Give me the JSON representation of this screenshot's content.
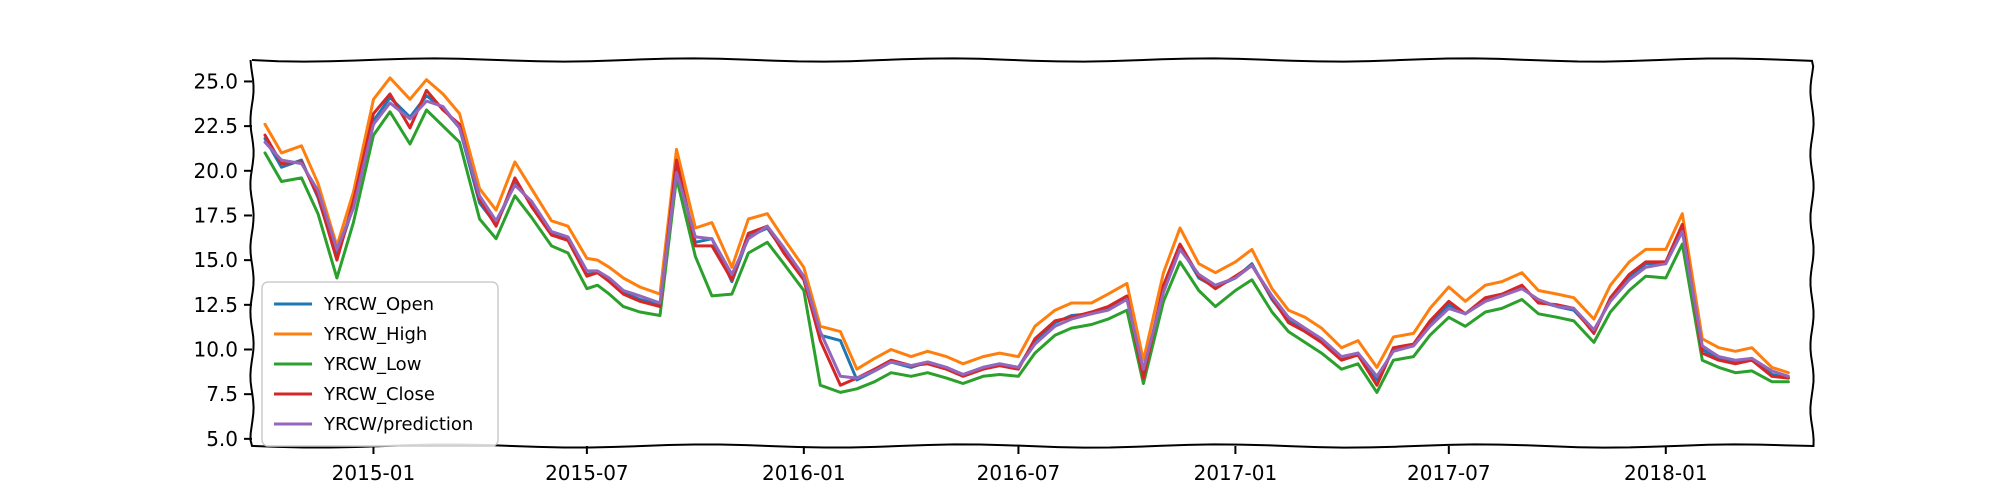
{
  "chart_data": {
    "type": "line",
    "title": "",
    "xlabel": "",
    "ylabel": "",
    "xlim": [
      "2014-09-20",
      "2018-05-05"
    ],
    "ylim": [
      4.6,
      26.2
    ],
    "grid": false,
    "legend_position": "lower-left",
    "x_ticks": [
      "2015-01",
      "2015-07",
      "2016-01",
      "2016-07",
      "2017-01",
      "2017-07",
      "2018-01"
    ],
    "y_ticks": [
      "5.0",
      "7.5",
      "10.0",
      "12.5",
      "15.0",
      "17.5",
      "20.0",
      "22.5",
      "25.0"
    ],
    "x": [
      "2014-10-01",
      "2014-10-15",
      "2014-11-01",
      "2014-11-15",
      "2014-12-01",
      "2014-12-15",
      "2015-01-01",
      "2015-01-15",
      "2015-02-01",
      "2015-02-15",
      "2015-03-01",
      "2015-03-15",
      "2015-04-01",
      "2015-04-15",
      "2015-05-01",
      "2015-05-15",
      "2015-06-01",
      "2015-06-15",
      "2015-07-01",
      "2015-07-10",
      "2015-07-20",
      "2015-08-01",
      "2015-08-15",
      "2015-09-01",
      "2015-09-15",
      "2015-10-01",
      "2015-10-15",
      "2015-11-01",
      "2015-11-15",
      "2015-12-01",
      "2015-12-15",
      "2016-01-01",
      "2016-01-15",
      "2016-02-01",
      "2016-02-15",
      "2016-03-01",
      "2016-03-15",
      "2016-04-01",
      "2016-04-15",
      "2016-05-01",
      "2016-05-15",
      "2016-06-01",
      "2016-06-15",
      "2016-07-01",
      "2016-07-15",
      "2016-08-01",
      "2016-08-15",
      "2016-09-01",
      "2016-09-15",
      "2016-10-01",
      "2016-10-15",
      "2016-11-01",
      "2016-11-15",
      "2016-12-01",
      "2016-12-15",
      "2017-01-01",
      "2017-01-15",
      "2017-02-01",
      "2017-02-15",
      "2017-03-01",
      "2017-03-15",
      "2017-04-01",
      "2017-04-15",
      "2017-05-01",
      "2017-05-15",
      "2017-06-01",
      "2017-06-15",
      "2017-07-01",
      "2017-07-15",
      "2017-08-01",
      "2017-08-15",
      "2017-09-01",
      "2017-09-15",
      "2017-10-01",
      "2017-10-15",
      "2017-11-01",
      "2017-11-15",
      "2017-12-01",
      "2017-12-15",
      "2018-01-01",
      "2018-01-15",
      "2018-02-01",
      "2018-02-15",
      "2018-03-01",
      "2018-03-15",
      "2018-04-01",
      "2018-04-15"
    ],
    "series": [
      {
        "name": "YRCW_Open",
        "color": "#1f77b4",
        "values": [
          21.8,
          20.2,
          20.6,
          18.5,
          15.2,
          18.0,
          22.8,
          24.1,
          23.0,
          24.2,
          23.5,
          22.4,
          18.2,
          17.0,
          19.3,
          18.2,
          16.5,
          16.2,
          14.2,
          14.3,
          13.9,
          13.2,
          12.8,
          12.5,
          20.5,
          16.0,
          16.2,
          13.8,
          16.3,
          16.8,
          15.5,
          14.0,
          10.8,
          10.5,
          8.3,
          8.8,
          9.3,
          9.0,
          9.3,
          9.0,
          8.6,
          9.0,
          9.2,
          9.0,
          10.5,
          11.5,
          11.9,
          12.0,
          12.3,
          12.9,
          8.7,
          13.4,
          15.8,
          14.0,
          13.5,
          14.0,
          14.8,
          12.8,
          11.6,
          11.1,
          10.5,
          9.5,
          9.8,
          8.3,
          10.0,
          10.2,
          11.5,
          12.5,
          12.0,
          12.8,
          13.0,
          13.5,
          12.7,
          12.4,
          12.2,
          11.0,
          12.8,
          14.0,
          14.8,
          14.8,
          16.8,
          10.0,
          9.5,
          9.3,
          9.5,
          8.6,
          8.4
        ]
      },
      {
        "name": "YRCW_High",
        "color": "#ff7f0e",
        "values": [
          22.6,
          21.0,
          21.4,
          19.3,
          15.8,
          18.8,
          24.0,
          25.2,
          24.0,
          25.1,
          24.3,
          23.2,
          19.0,
          17.8,
          20.5,
          19.0,
          17.2,
          16.9,
          15.1,
          15.0,
          14.6,
          14.0,
          13.5,
          13.1,
          21.2,
          16.8,
          17.1,
          14.6,
          17.3,
          17.6,
          16.2,
          14.6,
          11.3,
          11.0,
          8.9,
          9.5,
          10.0,
          9.6,
          9.9,
          9.6,
          9.2,
          9.6,
          9.8,
          9.6,
          11.3,
          12.2,
          12.6,
          12.6,
          13.1,
          13.7,
          9.4,
          14.3,
          16.8,
          14.8,
          14.3,
          14.9,
          15.6,
          13.4,
          12.2,
          11.8,
          11.2,
          10.1,
          10.5,
          9.0,
          10.7,
          10.9,
          12.3,
          13.5,
          12.7,
          13.6,
          13.8,
          14.3,
          13.3,
          13.1,
          12.9,
          11.7,
          13.6,
          14.9,
          15.6,
          15.6,
          17.6,
          10.6,
          10.1,
          9.9,
          10.1,
          9.0,
          8.7
        ]
      },
      {
        "name": "YRCW_Low",
        "color": "#2ca02c",
        "values": [
          21.0,
          19.4,
          19.6,
          17.6,
          14.0,
          17.1,
          22.0,
          23.3,
          21.5,
          23.4,
          22.5,
          21.6,
          17.3,
          16.2,
          18.6,
          17.4,
          15.8,
          15.4,
          13.4,
          13.6,
          13.1,
          12.4,
          12.1,
          11.9,
          19.6,
          15.2,
          13.0,
          13.1,
          15.4,
          16.0,
          14.8,
          13.3,
          8.0,
          7.6,
          7.8,
          8.2,
          8.7,
          8.5,
          8.7,
          8.4,
          8.1,
          8.5,
          8.6,
          8.5,
          9.8,
          10.8,
          11.2,
          11.4,
          11.7,
          12.2,
          8.1,
          12.7,
          14.9,
          13.3,
          12.4,
          13.3,
          13.9,
          12.1,
          11.0,
          10.4,
          9.8,
          8.9,
          9.2,
          7.6,
          9.4,
          9.6,
          10.8,
          11.8,
          11.3,
          12.1,
          12.3,
          12.8,
          12.0,
          11.8,
          11.6,
          10.4,
          12.1,
          13.3,
          14.1,
          14.0,
          15.9,
          9.4,
          9.0,
          8.7,
          8.8,
          8.2,
          8.2
        ]
      },
      {
        "name": "YRCW_Close",
        "color": "#d62728",
        "values": [
          22.0,
          20.4,
          20.5,
          18.6,
          15.0,
          18.3,
          23.2,
          24.3,
          22.4,
          24.5,
          23.4,
          22.6,
          18.4,
          16.9,
          19.6,
          18.0,
          16.4,
          16.1,
          14.1,
          14.3,
          13.8,
          13.1,
          12.7,
          12.4,
          20.6,
          15.8,
          15.8,
          13.9,
          16.5,
          16.9,
          15.4,
          13.9,
          10.5,
          8.0,
          8.4,
          8.9,
          9.4,
          9.1,
          9.2,
          8.9,
          8.5,
          8.9,
          9.1,
          8.9,
          10.6,
          11.6,
          11.8,
          12.1,
          12.4,
          13.0,
          8.4,
          13.6,
          15.9,
          14.1,
          13.4,
          14.1,
          14.7,
          12.9,
          11.5,
          11.0,
          10.4,
          9.4,
          9.7,
          8.0,
          10.1,
          10.3,
          11.6,
          12.7,
          12.0,
          12.9,
          13.1,
          13.6,
          12.6,
          12.5,
          12.3,
          10.9,
          12.9,
          14.2,
          14.9,
          14.9,
          17.0,
          9.8,
          9.4,
          9.2,
          9.4,
          8.5,
          8.4
        ]
      },
      {
        "name": "YRCW/prediction",
        "color": "#9467bd",
        "values": [
          21.6,
          20.6,
          20.4,
          18.9,
          15.6,
          17.9,
          22.6,
          23.8,
          22.9,
          23.9,
          23.6,
          22.4,
          18.6,
          17.2,
          19.2,
          18.3,
          16.6,
          16.3,
          14.4,
          14.4,
          14.0,
          13.3,
          13.0,
          12.6,
          19.9,
          16.3,
          16.2,
          14.2,
          16.2,
          16.9,
          15.7,
          14.1,
          11.0,
          8.5,
          8.4,
          8.8,
          9.3,
          9.1,
          9.3,
          9.0,
          8.6,
          9.0,
          9.2,
          9.0,
          10.3,
          11.3,
          11.7,
          12.0,
          12.2,
          12.8,
          8.9,
          13.2,
          15.6,
          14.2,
          13.6,
          14.0,
          14.7,
          13.0,
          11.8,
          11.2,
          10.6,
          9.6,
          9.8,
          8.5,
          9.9,
          10.2,
          11.3,
          12.3,
          12.0,
          12.7,
          13.0,
          13.4,
          12.8,
          12.4,
          12.3,
          11.1,
          12.7,
          13.9,
          14.6,
          14.8,
          16.6,
          10.2,
          9.6,
          9.4,
          9.5,
          8.8,
          8.5
        ]
      }
    ]
  }
}
